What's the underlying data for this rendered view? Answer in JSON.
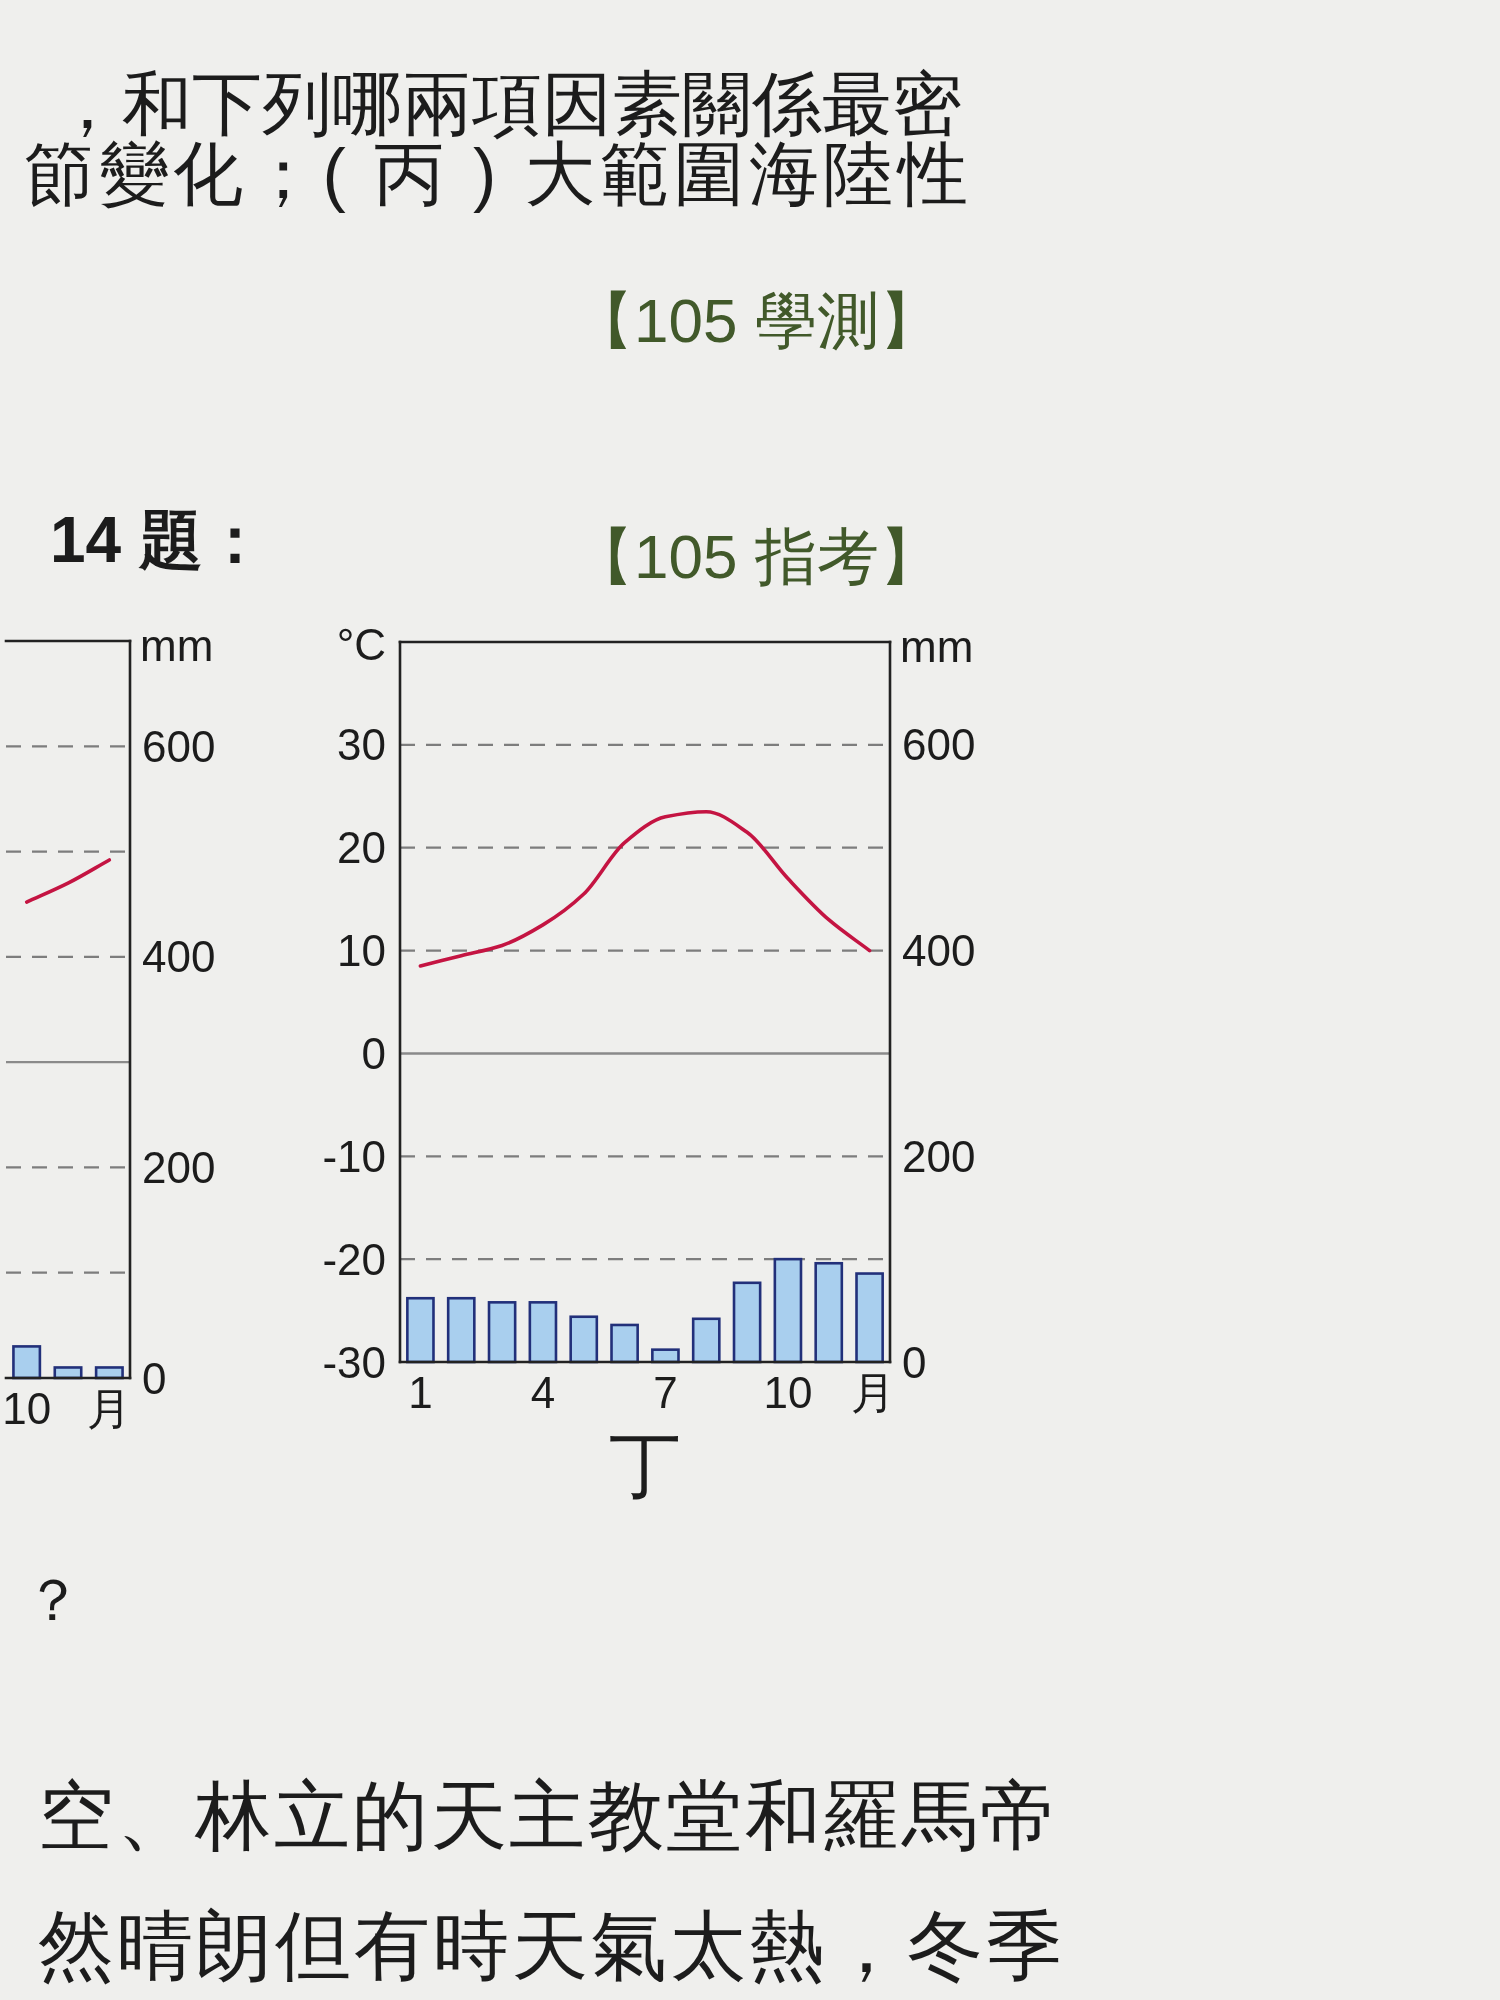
{
  "chart_data": [
    {
      "type": "other",
      "annotations": [
        "，和下列哪兩項因素關係最密",
        "節變化；( 丙 ) 大範圍海陸性",
        "【105 學測】",
        "14 題：",
        "【105 指考】"
      ]
    },
    {
      "type": "bar",
      "y2label": "mm",
      "categories": [
        "10",
        null,
        "月"
      ],
      "y2lim": [
        0,
        700
      ],
      "y2ticks": [
        0,
        200,
        400,
        600
      ],
      "grid": "y",
      "ref_lines": [
        {
          "axis": "y2",
          "value": 100,
          "line_style": "dashed"
        },
        {
          "axis": "y2",
          "value": 300
        },
        {
          "axis": "y2",
          "value": 500,
          "line_style": "dashed"
        }
      ],
      "series": [
        {
          "type": "bar",
          "axis": "y2",
          "color": "#a9cfee",
          "values": [
            30,
            10,
            10
          ]
        },
        {
          "type": "line",
          "axis": "y2",
          "color": "#c41442",
          "values": [
            452,
            470,
            492
          ]
        }
      ]
    },
    {
      "type": "bar",
      "title": "丁",
      "xlabel": "月",
      "ylabel": "°C",
      "y2label": "mm",
      "x": [
        1,
        2,
        3,
        4,
        5,
        6,
        7,
        8,
        9,
        10,
        11,
        12
      ],
      "xlim": [
        0.5,
        12.5
      ],
      "xticks": [
        1,
        4,
        7,
        10
      ],
      "ylim": [
        -30,
        40
      ],
      "yticks": [
        -30,
        -20,
        -10,
        0,
        10,
        20,
        30
      ],
      "y2lim": [
        0,
        700
      ],
      "y2ticks": [
        0,
        200,
        400,
        600
      ],
      "grid": "y",
      "ref_lines": [
        {
          "axis": "y",
          "value": 0
        }
      ],
      "series": [
        {
          "type": "bar",
          "axis": "y2",
          "color": "#a9cfee",
          "values": [
            62,
            62,
            58,
            58,
            44,
            36,
            12,
            42,
            77,
            100,
            96,
            86
          ]
        },
        {
          "type": "line",
          "axis": "y",
          "color": "#c41442",
          "values": [
            8.5,
            9.5,
            10.5,
            12.5,
            15.5,
            20.5,
            23,
            23.5,
            21.5,
            17,
            13,
            10
          ]
        }
      ]
    },
    {
      "type": "other",
      "annotations": [
        "？",
        "空、林立的天主教堂和羅馬帝",
        "然晴朗但有時天氣太熱，冬季"
      ]
    }
  ]
}
